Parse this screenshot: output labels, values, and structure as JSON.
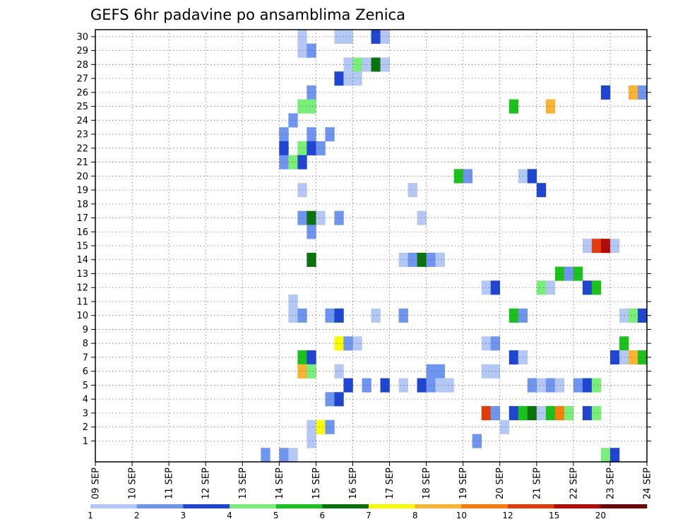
{
  "chart_data": {
    "type": "heatmap",
    "title": "GEFS 6hr padavine po ansamblima Zenica",
    "y_categories": [
      "1",
      "2",
      "3",
      "4",
      "5",
      "6",
      "7",
      "8",
      "9",
      "10",
      "11",
      "12",
      "13",
      "14",
      "15",
      "16",
      "17",
      "18",
      "19",
      "20",
      "21",
      "22",
      "23",
      "24",
      "25",
      "26",
      "27",
      "28",
      "29",
      "30"
    ],
    "x_ticks": [
      "09 SEP",
      "10 SEP",
      "11 SEP",
      "12 SEP",
      "13 SEP",
      "14 SEP",
      "15 SEP",
      "16 SEP",
      "17 SEP",
      "18 SEP",
      "19 SEP",
      "20 SEP",
      "21 SEP",
      "22 SEP",
      "23 SEP",
      "24 SEP"
    ],
    "x_unit": "6-hour steps starting 09 SEP 00Z",
    "grid": true,
    "colorbar": {
      "labels": [
        "1",
        "2",
        "3",
        "4",
        "5",
        "6",
        "7",
        "8",
        "10",
        "12",
        "15",
        "20"
      ],
      "colors": [
        "#b4c8f5",
        "#6e96f0",
        "#1f46d2",
        "#78f078",
        "#19c319",
        "#0a730a",
        "#fafa00",
        "#fab432",
        "#fa7d0a",
        "#e13c0a",
        "#b40a0a",
        "#6e0505"
      ]
    },
    "cells": [
      {
        "member": 30,
        "step": 23,
        "value": 1.5
      },
      {
        "member": 30,
        "step": 27,
        "value": 1.5
      },
      {
        "member": 30,
        "step": 28,
        "value": 1.5
      },
      {
        "member": 30,
        "step": 31,
        "value": 3.5
      },
      {
        "member": 30,
        "step": 32,
        "value": 1.5
      },
      {
        "member": 29,
        "step": 23,
        "value": 1.5
      },
      {
        "member": 29,
        "step": 24,
        "value": 2.5
      },
      {
        "member": 28,
        "step": 28,
        "value": 1.5
      },
      {
        "member": 28,
        "step": 29,
        "value": 4.5
      },
      {
        "member": 28,
        "step": 30,
        "value": 1.5
      },
      {
        "member": 28,
        "step": 31,
        "value": 6.5
      },
      {
        "member": 28,
        "step": 32,
        "value": 1.5
      },
      {
        "member": 27,
        "step": 27,
        "value": 3.5
      },
      {
        "member": 27,
        "step": 28,
        "value": 1.5
      },
      {
        "member": 27,
        "step": 29,
        "value": 1.5
      },
      {
        "member": 26,
        "step": 24,
        "value": 2.5
      },
      {
        "member": 26,
        "step": 56,
        "value": 3.5
      },
      {
        "member": 26,
        "step": 59,
        "value": 9
      },
      {
        "member": 26,
        "step": 60,
        "value": 2.5
      },
      {
        "member": 25,
        "step": 23,
        "value": 4.5
      },
      {
        "member": 25,
        "step": 24,
        "value": 4.5
      },
      {
        "member": 25,
        "step": 46,
        "value": 5.5
      },
      {
        "member": 25,
        "step": 50,
        "value": 9
      },
      {
        "member": 24,
        "step": 22,
        "value": 2.5
      },
      {
        "member": 23,
        "step": 21,
        "value": 2.5
      },
      {
        "member": 23,
        "step": 24,
        "value": 2.5
      },
      {
        "member": 23,
        "step": 26,
        "value": 2.5
      },
      {
        "member": 22,
        "step": 21,
        "value": 3.5
      },
      {
        "member": 22,
        "step": 23,
        "value": 4.5
      },
      {
        "member": 22,
        "step": 24,
        "value": 3.5
      },
      {
        "member": 22,
        "step": 25,
        "value": 2.5
      },
      {
        "member": 21,
        "step": 21,
        "value": 2.5
      },
      {
        "member": 21,
        "step": 22,
        "value": 4.5
      },
      {
        "member": 21,
        "step": 23,
        "value": 3.5
      },
      {
        "member": 20,
        "step": 40,
        "value": 5.5
      },
      {
        "member": 20,
        "step": 41,
        "value": 2.5
      },
      {
        "member": 20,
        "step": 47,
        "value": 1.5
      },
      {
        "member": 20,
        "step": 48,
        "value": 3.5
      },
      {
        "member": 19,
        "step": 23,
        "value": 1.5
      },
      {
        "member": 19,
        "step": 35,
        "value": 1.5
      },
      {
        "member": 19,
        "step": 49,
        "value": 3.5
      },
      {
        "member": 17,
        "step": 23,
        "value": 2.5
      },
      {
        "member": 17,
        "step": 24,
        "value": 6.5
      },
      {
        "member": 17,
        "step": 25,
        "value": 1.5
      },
      {
        "member": 17,
        "step": 27,
        "value": 2.5
      },
      {
        "member": 17,
        "step": 36,
        "value": 1.5
      },
      {
        "member": 16,
        "step": 24,
        "value": 2.5
      },
      {
        "member": 15,
        "step": 54,
        "value": 1.5
      },
      {
        "member": 15,
        "step": 55,
        "value": 13.5
      },
      {
        "member": 15,
        "step": 56,
        "value": 17.5
      },
      {
        "member": 15,
        "step": 57,
        "value": 1.5
      },
      {
        "member": 14,
        "step": 24,
        "value": 6.5
      },
      {
        "member": 14,
        "step": 34,
        "value": 1.5
      },
      {
        "member": 14,
        "step": 35,
        "value": 2.5
      },
      {
        "member": 14,
        "step": 36,
        "value": 6.5
      },
      {
        "member": 14,
        "step": 37,
        "value": 2.5
      },
      {
        "member": 14,
        "step": 38,
        "value": 1.5
      },
      {
        "member": 13,
        "step": 51,
        "value": 5.5
      },
      {
        "member": 13,
        "step": 52,
        "value": 2.5
      },
      {
        "member": 13,
        "step": 53,
        "value": 5.5
      },
      {
        "member": 12,
        "step": 43,
        "value": 1.5
      },
      {
        "member": 12,
        "step": 44,
        "value": 3.5
      },
      {
        "member": 12,
        "step": 49,
        "value": 4.5
      },
      {
        "member": 12,
        "step": 50,
        "value": 1.5
      },
      {
        "member": 12,
        "step": 54,
        "value": 3.5
      },
      {
        "member": 12,
        "step": 55,
        "value": 5.5
      },
      {
        "member": 11,
        "step": 22,
        "value": 1.5
      },
      {
        "member": 10,
        "step": 22,
        "value": 1.5
      },
      {
        "member": 10,
        "step": 23,
        "value": 2.5
      },
      {
        "member": 10,
        "step": 26,
        "value": 2.5
      },
      {
        "member": 10,
        "step": 27,
        "value": 3.5
      },
      {
        "member": 10,
        "step": 31,
        "value": 1.5
      },
      {
        "member": 10,
        "step": 34,
        "value": 2.5
      },
      {
        "member": 10,
        "step": 46,
        "value": 5.5
      },
      {
        "member": 10,
        "step": 47,
        "value": 2.5
      },
      {
        "member": 10,
        "step": 58,
        "value": 1.5
      },
      {
        "member": 10,
        "step": 59,
        "value": 4.5
      },
      {
        "member": 10,
        "step": 60,
        "value": 3.5
      },
      {
        "member": 8,
        "step": 27,
        "value": 7.5
      },
      {
        "member": 8,
        "step": 28,
        "value": 2.5
      },
      {
        "member": 8,
        "step": 29,
        "value": 1.5
      },
      {
        "member": 8,
        "step": 43,
        "value": 1.5
      },
      {
        "member": 8,
        "step": 44,
        "value": 2.5
      },
      {
        "member": 8,
        "step": 58,
        "value": 5.5
      },
      {
        "member": 7,
        "step": 23,
        "value": 5.5
      },
      {
        "member": 7,
        "step": 24,
        "value": 3.5
      },
      {
        "member": 7,
        "step": 46,
        "value": 3.5
      },
      {
        "member": 7,
        "step": 47,
        "value": 1.5
      },
      {
        "member": 7,
        "step": 57,
        "value": 3.5
      },
      {
        "member": 7,
        "step": 58,
        "value": 1.5
      },
      {
        "member": 7,
        "step": 59,
        "value": 9
      },
      {
        "member": 7,
        "step": 60,
        "value": 5.5
      },
      {
        "member": 6,
        "step": 23,
        "value": 9
      },
      {
        "member": 6,
        "step": 24,
        "value": 4.5
      },
      {
        "member": 6,
        "step": 27,
        "value": 1.5
      },
      {
        "member": 6,
        "step": 37,
        "value": 2.5
      },
      {
        "member": 6,
        "step": 38,
        "value": 2.5
      },
      {
        "member": 6,
        "step": 43,
        "value": 1.5
      },
      {
        "member": 6,
        "step": 44,
        "value": 1.5
      },
      {
        "member": 5,
        "step": 28,
        "value": 3.5
      },
      {
        "member": 5,
        "step": 30,
        "value": 2.5
      },
      {
        "member": 5,
        "step": 32,
        "value": 3.5
      },
      {
        "member": 5,
        "step": 34,
        "value": 1.5
      },
      {
        "member": 5,
        "step": 36,
        "value": 3.5
      },
      {
        "member": 5,
        "step": 37,
        "value": 2.5
      },
      {
        "member": 5,
        "step": 38,
        "value": 1.5
      },
      {
        "member": 5,
        "step": 39,
        "value": 1.5
      },
      {
        "member": 5,
        "step": 48,
        "value": 2.5
      },
      {
        "member": 5,
        "step": 49,
        "value": 1.5
      },
      {
        "member": 5,
        "step": 50,
        "value": 2.5
      },
      {
        "member": 5,
        "step": 51,
        "value": 1.5
      },
      {
        "member": 5,
        "step": 53,
        "value": 2.5
      },
      {
        "member": 5,
        "step": 54,
        "value": 3.5
      },
      {
        "member": 5,
        "step": 55,
        "value": 4.5
      },
      {
        "member": 4,
        "step": 26,
        "value": 2.5
      },
      {
        "member": 4,
        "step": 27,
        "value": 3.5
      },
      {
        "member": 3,
        "step": 43,
        "value": 13.5
      },
      {
        "member": 3,
        "step": 44,
        "value": 2.5
      },
      {
        "member": 3,
        "step": 46,
        "value": 3.5
      },
      {
        "member": 3,
        "step": 47,
        "value": 5.5
      },
      {
        "member": 3,
        "step": 48,
        "value": 6.5
      },
      {
        "member": 3,
        "step": 49,
        "value": 1.5
      },
      {
        "member": 3,
        "step": 50,
        "value": 5.5
      },
      {
        "member": 3,
        "step": 51,
        "value": 11
      },
      {
        "member": 3,
        "step": 52,
        "value": 4.5
      },
      {
        "member": 3,
        "step": 54,
        "value": 3.5
      },
      {
        "member": 3,
        "step": 55,
        "value": 4.5
      },
      {
        "member": 2,
        "step": 24,
        "value": 1.5
      },
      {
        "member": 2,
        "step": 25,
        "value": 7.5
      },
      {
        "member": 2,
        "step": 26,
        "value": 2.5
      },
      {
        "member": 2,
        "step": 45,
        "value": 1.5
      },
      {
        "member": 1,
        "step": 24,
        "value": 1.5
      },
      {
        "member": 1,
        "step": 42,
        "value": 2.5
      },
      {
        "member": 0,
        "step": 19,
        "value": 2.5
      },
      {
        "member": 0,
        "step": 21,
        "value": 2.5
      },
      {
        "member": 0,
        "step": 22,
        "value": 1.5
      },
      {
        "member": 0,
        "step": 56,
        "value": 4.5
      },
      {
        "member": 0,
        "step": 57,
        "value": 3.5
      }
    ]
  }
}
